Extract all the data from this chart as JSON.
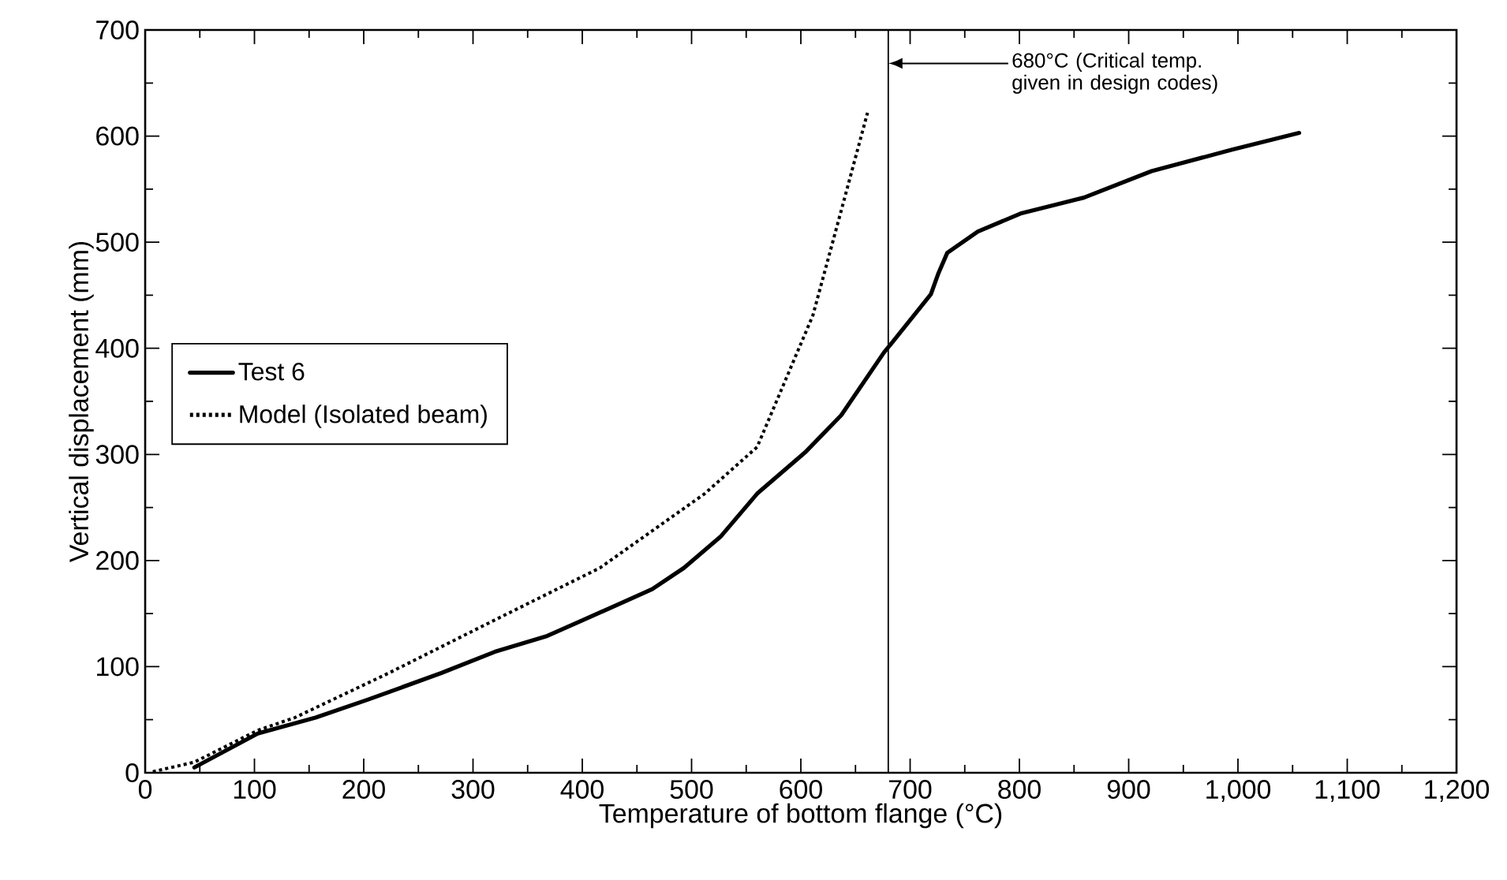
{
  "chart_data": {
    "type": "line",
    "xlabel": "Temperature of bottom flange (°C)",
    "ylabel": "Vertical displacement (mm)",
    "xlim": [
      0,
      1200
    ],
    "ylim": [
      0,
      700
    ],
    "xticks": [
      0,
      100,
      200,
      300,
      400,
      500,
      600,
      700,
      800,
      900,
      {
        "value": 1000,
        "label": "1,000"
      },
      {
        "value": 1100,
        "label": "1,100"
      },
      {
        "value": 1200,
        "label": "1,200"
      }
    ],
    "yticks": [
      0,
      100,
      200,
      300,
      400,
      500,
      600,
      700
    ],
    "grid": false,
    "legend": "left",
    "ref_lines": [
      {
        "axis": "x",
        "value": 680,
        "label": "680°C (Critical temp. given in design codes)",
        "color": "#000000",
        "line_style": "solid"
      }
    ],
    "series": [
      {
        "name": "Test 6",
        "color": "#000000",
        "line_style": "solid",
        "x": [
          45,
          103,
          156,
          204,
          271,
          320,
          368,
          401,
          464,
          493,
          527,
          560,
          604,
          637,
          676,
          684,
          719,
          726,
          734,
          762,
          801,
          859,
          921,
          994,
          1056
        ],
        "values": [
          5,
          37,
          52,
          69,
          94,
          114,
          129,
          144,
          173,
          193,
          223,
          263,
          302,
          337,
          396,
          406,
          451,
          471,
          490,
          510,
          527,
          542,
          567,
          587,
          603
        ]
      },
      {
        "name": "Model (Isolated beam)",
        "color": "#000000",
        "line_style": "dotted",
        "x": [
          7,
          45,
          103,
          137,
          223,
          320,
          416,
          512,
          560,
          611,
          637,
          661
        ],
        "values": [
          1,
          10,
          40,
          52,
          94,
          144,
          193,
          263,
          307,
          431,
          530,
          622
        ]
      }
    ]
  }
}
